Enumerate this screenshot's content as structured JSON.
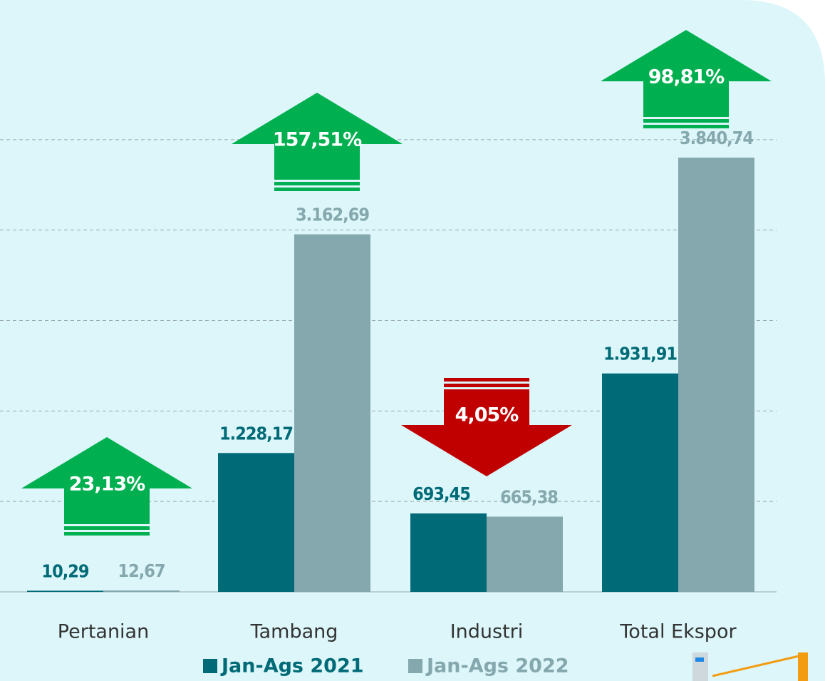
{
  "chart_data": {
    "type": "bar",
    "categories": [
      "Pertanian",
      "Tambang",
      "Industri",
      "Total Ekspor"
    ],
    "series": [
      {
        "name": "Jan-Ags 2021",
        "color": "#006b77",
        "values": [
          10.29,
          1228.17,
          693.45,
          1931.91
        ],
        "value_labels": [
          "10,29",
          "1.228,17",
          "693,45",
          "1.931,91"
        ]
      },
      {
        "name": "Jan-Ags 2022",
        "color": "#84a8ad",
        "values": [
          12.67,
          3162.69,
          665.38,
          3840.74
        ],
        "value_labels": [
          "12,67",
          "3.162,69",
          "665,38",
          "3.840,74"
        ]
      }
    ],
    "changes": {
      "values": [
        23.13,
        157.51,
        -4.05,
        98.81
      ],
      "value_labels": [
        "23,13%",
        "157,51%",
        "4,05%",
        "98,81%"
      ],
      "up_color": "#00b050",
      "down_color": "#c00000"
    },
    "ylim": [
      0,
      4800
    ],
    "yticks": [
      0,
      800,
      1600,
      2400,
      3200,
      4000
    ],
    "grid": true
  }
}
